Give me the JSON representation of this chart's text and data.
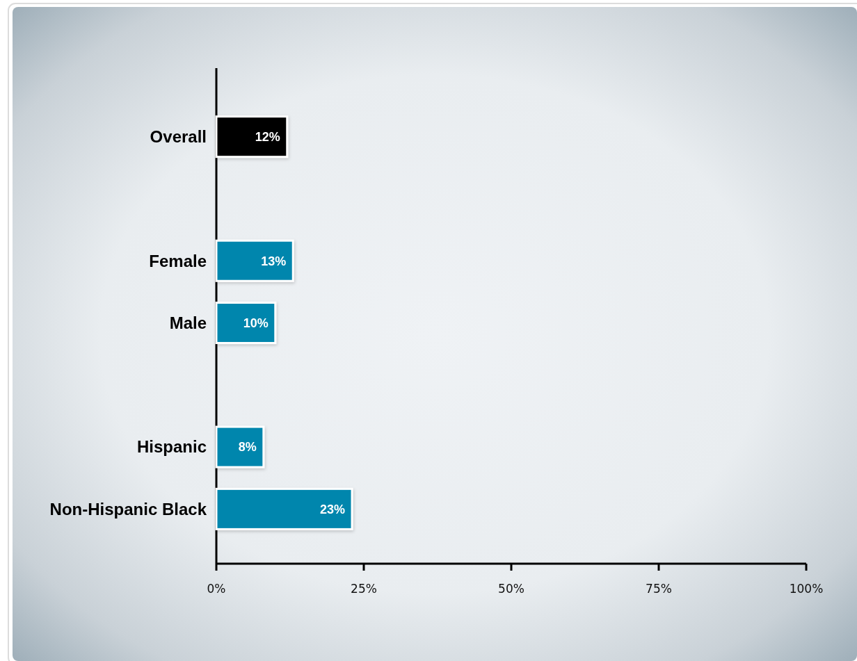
{
  "chart_data": {
    "type": "bar",
    "orientation": "horizontal",
    "categories": [
      "Overall",
      null,
      "Female",
      "Male",
      null,
      "Hispanic",
      "Non-Hispanic Black"
    ],
    "values": [
      12,
      null,
      13,
      10,
      null,
      8,
      23
    ],
    "colors": [
      "#000000",
      null,
      "#0086ad",
      "#0086ad",
      null,
      "#0086ad",
      "#0086ad"
    ],
    "value_labels": [
      "12%",
      null,
      "13%",
      "10%",
      null,
      "8%",
      "23%"
    ],
    "xlim": [
      0,
      100
    ],
    "xticks": [
      {
        "value": 0,
        "label": "0%"
      },
      {
        "value": 25,
        "label": "25%"
      },
      {
        "value": 50,
        "label": "50%"
      },
      {
        "value": 75,
        "label": "75%"
      },
      {
        "value": 100,
        "label": "100%"
      }
    ]
  }
}
